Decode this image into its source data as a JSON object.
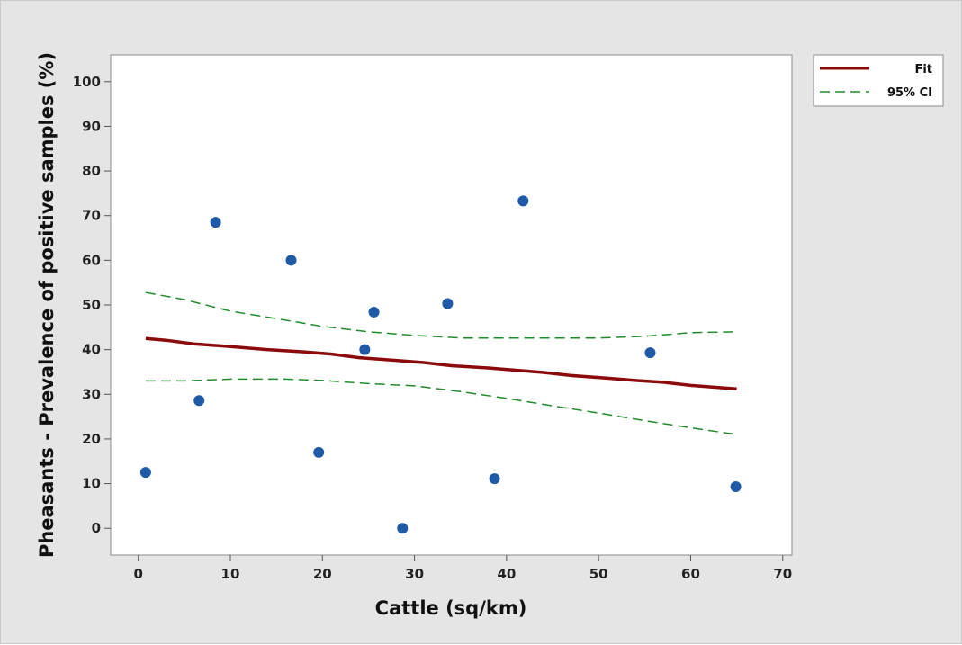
{
  "chart_data": {
    "type": "scatter",
    "title": "",
    "xlabel": "Cattle (sq/km)",
    "ylabel": "Pheasants - Prevalence of positive samples (%)",
    "xlim": [
      -3,
      71
    ],
    "ylim": [
      -6,
      106
    ],
    "x_ticks": [
      "0",
      "10",
      "20",
      "30",
      "40",
      "50",
      "60",
      "70"
    ],
    "y_ticks": [
      "0",
      "10",
      "20",
      "30",
      "40",
      "50",
      "60",
      "70",
      "80",
      "90",
      "100"
    ],
    "points": [
      {
        "x": 0.8,
        "y": 12.5
      },
      {
        "x": 6.6,
        "y": 28.6
      },
      {
        "x": 8.4,
        "y": 68.5
      },
      {
        "x": 16.6,
        "y": 60.0
      },
      {
        "x": 19.6,
        "y": 17.0
      },
      {
        "x": 24.6,
        "y": 40.0
      },
      {
        "x": 25.6,
        "y": 48.4
      },
      {
        "x": 28.7,
        "y": 0.0
      },
      {
        "x": 33.6,
        "y": 50.3
      },
      {
        "x": 38.7,
        "y": 11.1
      },
      {
        "x": 41.8,
        "y": 73.3
      },
      {
        "x": 55.6,
        "y": 39.3
      },
      {
        "x": 64.9,
        "y": 9.3
      }
    ],
    "series": [
      {
        "name": "Fit",
        "color": "#8b0a0a",
        "style": "solid",
        "x": [
          0.8,
          3,
          6,
          10,
          14,
          18,
          21,
          24,
          28,
          31,
          34,
          38,
          41,
          44,
          47,
          51,
          54,
          57,
          60,
          63,
          65
        ],
        "y": [
          42.5,
          42.1,
          41.3,
          40.7,
          40.0,
          39.5,
          39.0,
          38.2,
          37.6,
          37.1,
          36.4,
          35.9,
          35.4,
          34.9,
          34.2,
          33.6,
          33.1,
          32.7,
          32.0,
          31.5,
          31.2
        ]
      },
      {
        "name": "95% CI",
        "color": "#1e8c2a",
        "style": "dashed",
        "x": [
          0.8,
          5,
          10,
          16,
          20,
          25,
          30,
          35,
          40,
          45,
          50,
          55,
          60,
          65
        ],
        "y": [
          52.8,
          51.2,
          48.6,
          46.6,
          45.2,
          44.0,
          43.2,
          42.6,
          42.6,
          42.6,
          42.6,
          43.0,
          43.8,
          44.0
        ]
      },
      {
        "name": "95% CI lower",
        "color": "#1e8c2a",
        "style": "dashed",
        "x": [
          0.8,
          5,
          10,
          16,
          20,
          25,
          30,
          35,
          40,
          45,
          50,
          55,
          60,
          65
        ],
        "y": [
          33.0,
          33.0,
          33.4,
          33.4,
          33.1,
          32.4,
          31.9,
          30.6,
          29.1,
          27.4,
          25.8,
          24.1,
          22.5,
          21.0
        ]
      }
    ],
    "legend": {
      "position": "top-right",
      "entries": [
        {
          "label": "Fit",
          "color": "#8b0a0a",
          "style": "solid"
        },
        {
          "label": "95% CI",
          "color": "#1e8c2a",
          "style": "dashed"
        }
      ]
    },
    "point_color": "#1f5aa6",
    "grid": false
  }
}
